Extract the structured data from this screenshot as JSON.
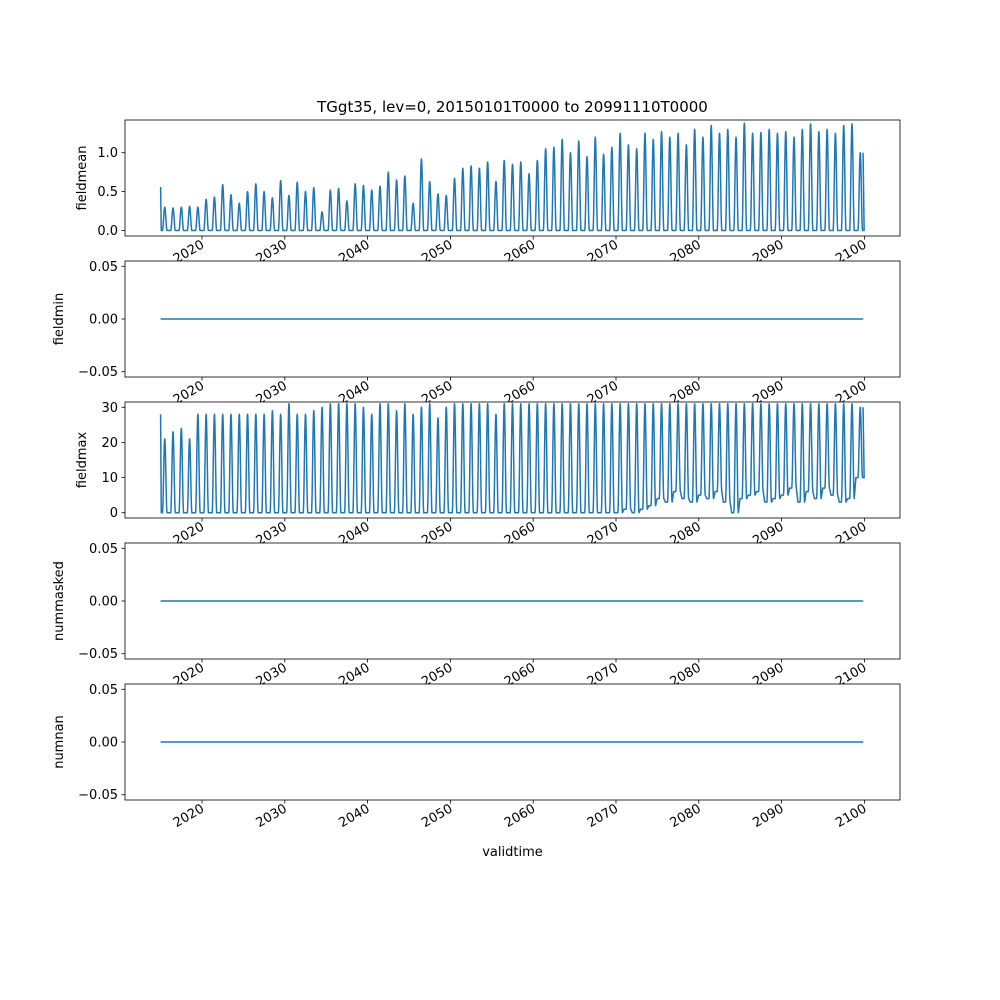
{
  "figure": {
    "title": "TGgt35, lev=0, 20150101T0000 to 20991110T0000",
    "xlabel": "validtime",
    "series_color": "#1f77b4"
  },
  "chart_data": [
    {
      "type": "line",
      "ylabel": "fieldmean",
      "xlim": [
        2010.7,
        2104.3
      ],
      "ylim": [
        -0.07,
        1.42
      ],
      "x_ticks": [
        2020,
        2030,
        2040,
        2050,
        2060,
        2070,
        2080,
        2090,
        2100
      ],
      "y_ticks": [
        {
          "v": 0,
          "label": "0.0"
        },
        {
          "v": 0.5,
          "label": "0.5"
        },
        {
          "v": 1.0,
          "label": "1.0"
        }
      ],
      "first_value": 0.56,
      "annual_peaks": [
        0.3,
        0.29,
        0.3,
        0.31,
        0.3,
        0.4,
        0.43,
        0.59,
        0.46,
        0.35,
        0.5,
        0.6,
        0.5,
        0.42,
        0.64,
        0.45,
        0.62,
        0.5,
        0.55,
        0.24,
        0.52,
        0.54,
        0.38,
        0.6,
        0.58,
        0.52,
        0.57,
        0.75,
        0.65,
        0.7,
        0.35,
        0.92,
        0.63,
        0.47,
        0.45,
        0.67,
        0.8,
        0.83,
        0.8,
        0.88,
        0.63,
        0.9,
        0.85,
        0.88,
        0.73,
        0.9,
        1.05,
        1.07,
        1.17,
        1.0,
        1.15,
        0.95,
        1.2,
        0.98,
        1.07,
        1.25,
        1.1,
        1.05,
        1.25,
        1.17,
        1.27,
        1.2,
        1.25,
        1.1,
        1.3,
        1.2,
        1.35,
        1.25,
        1.3,
        1.2,
        1.38,
        1.25,
        1.26,
        1.3,
        1.25,
        1.27,
        1.2,
        1.3,
        1.37,
        1.27,
        1.3,
        1.25,
        1.35,
        1.37,
        1.0
      ],
      "last_value": 1.0
    },
    {
      "type": "line",
      "ylabel": "fieldmin",
      "xlim": [
        2010.7,
        2104.3
      ],
      "ylim": [
        -0.055,
        0.055
      ],
      "x_ticks": [
        2020,
        2030,
        2040,
        2050,
        2060,
        2070,
        2080,
        2090,
        2100
      ],
      "y_ticks": [
        {
          "v": -0.05,
          "label": "−0.05"
        },
        {
          "v": 0,
          "label": "0.00"
        },
        {
          "v": 0.05,
          "label": "0.05"
        }
      ],
      "constant_value": 0.0
    },
    {
      "type": "line",
      "ylabel": "fieldmax",
      "xlim": [
        2010.7,
        2104.3
      ],
      "ylim": [
        -1.5,
        31.5
      ],
      "x_ticks": [
        2020,
        2030,
        2040,
        2050,
        2060,
        2070,
        2080,
        2090,
        2100
      ],
      "y_ticks": [
        {
          "v": 0,
          "label": "0"
        },
        {
          "v": 10,
          "label": "10"
        },
        {
          "v": 20,
          "label": "20"
        },
        {
          "v": 30,
          "label": "30"
        }
      ],
      "first_value": 28,
      "annual_peaks": [
        21,
        23,
        24,
        21,
        28,
        28,
        28,
        28,
        28,
        28,
        28,
        28,
        28,
        29,
        28,
        31,
        28,
        28,
        29,
        30,
        31,
        31,
        31,
        31,
        30,
        28,
        31,
        31,
        29,
        31,
        28,
        30,
        31,
        27,
        30,
        31,
        31,
        31,
        31,
        31,
        28,
        31,
        31,
        31,
        31,
        31,
        31,
        31,
        31,
        31,
        31,
        31,
        31,
        31,
        31,
        31,
        31,
        31,
        31,
        31,
        31,
        31,
        31,
        31,
        31,
        31,
        31,
        31,
        31,
        31,
        31,
        31,
        31,
        31,
        31,
        31,
        31,
        31,
        31,
        31,
        31,
        31,
        31,
        31,
        30
      ],
      "annual_troughs": [
        0,
        0,
        0,
        0,
        0,
        0,
        0,
        0,
        0,
        0,
        0,
        0,
        0,
        0,
        0,
        0,
        0,
        0,
        0,
        0,
        0,
        0,
        0,
        0,
        0,
        0,
        0,
        0,
        0,
        0,
        0,
        0,
        0,
        0,
        0,
        0,
        0,
        0,
        0,
        0,
        0,
        0,
        0,
        0,
        0,
        0,
        0,
        0,
        0,
        0,
        0,
        0,
        0,
        0,
        0,
        0,
        1,
        0,
        1,
        2,
        4,
        3,
        6,
        4,
        3,
        5,
        4,
        6,
        3,
        0,
        4,
        5,
        6,
        3,
        4,
        5,
        7,
        3,
        6,
        4,
        7,
        5,
        3,
        4,
        10
      ],
      "last_value": 30
    },
    {
      "type": "line",
      "ylabel": "nummasked",
      "xlim": [
        2010.7,
        2104.3
      ],
      "ylim": [
        -0.055,
        0.055
      ],
      "x_ticks": [
        2020,
        2030,
        2040,
        2050,
        2060,
        2070,
        2080,
        2090,
        2100
      ],
      "y_ticks": [
        {
          "v": -0.05,
          "label": "−0.05"
        },
        {
          "v": 0,
          "label": "0.00"
        },
        {
          "v": 0.05,
          "label": "0.05"
        }
      ],
      "constant_value": 0.0
    },
    {
      "type": "line",
      "ylabel": "numnan",
      "xlim": [
        2010.7,
        2104.3
      ],
      "ylim": [
        -0.055,
        0.055
      ],
      "x_ticks": [
        2020,
        2030,
        2040,
        2050,
        2060,
        2070,
        2080,
        2090,
        2100
      ],
      "y_ticks": [
        {
          "v": -0.05,
          "label": "−0.05"
        },
        {
          "v": 0,
          "label": "0.00"
        },
        {
          "v": 0.05,
          "label": "0.05"
        }
      ],
      "constant_value": 0.0
    }
  ]
}
